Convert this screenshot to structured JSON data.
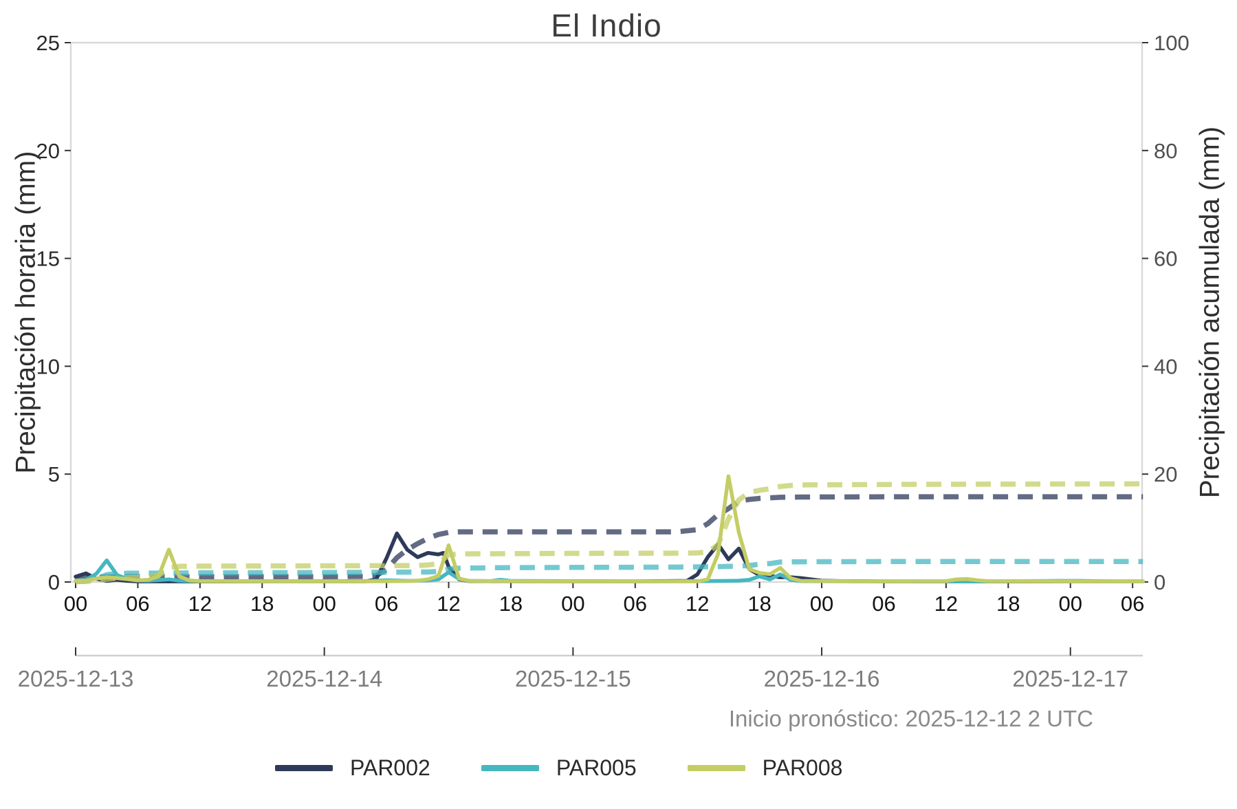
{
  "chart_data": {
    "type": "line",
    "title": "El Indio",
    "annotation": "Inicio pronóstico: 2025-12-12 2 UTC",
    "x_unit": "hours since 2025-12-13 00:00",
    "x_range_hours": [
      0,
      103
    ],
    "ylabel_left": "Precipitación horaria (mm)",
    "ylabel_right": "Precipitación acumulada (mm)",
    "ylim_left": [
      0,
      25
    ],
    "ylim_right": [
      0,
      100
    ],
    "grid": false,
    "x_axis": {
      "hour_tick_step": 6,
      "hour_tick_labels": [
        "00",
        "06",
        "12",
        "18",
        "00",
        "06",
        "12",
        "18",
        "00",
        "06",
        "12",
        "18",
        "00",
        "06",
        "12",
        "18",
        "00",
        "06"
      ],
      "date_ticks": [
        {
          "hour": 0,
          "label": "2025-12-13"
        },
        {
          "hour": 24,
          "label": "2025-12-14"
        },
        {
          "hour": 48,
          "label": "2025-12-15"
        },
        {
          "hour": 72,
          "label": "2025-12-16"
        },
        {
          "hour": 96,
          "label": "2025-12-17"
        }
      ]
    },
    "y_axis": {
      "left_tick_values": [
        0,
        5,
        10,
        15,
        20,
        25
      ],
      "right_tick_values": [
        0,
        20,
        40,
        60,
        80,
        100
      ]
    },
    "legend": {
      "position": "bottom",
      "entries": [
        {
          "label": "PAR002",
          "color": "#2e3a5a"
        },
        {
          "label": "PAR005",
          "color": "#45b7c1"
        },
        {
          "label": "PAR008",
          "color": "#c3cd65"
        }
      ]
    },
    "series": [
      {
        "name": "PAR002 horaria",
        "legend": "PAR002",
        "color": "#2e3a5a",
        "style": "solid",
        "axis": "left",
        "points": [
          [
            0,
            0.25
          ],
          [
            1,
            0.4
          ],
          [
            2,
            0.15
          ],
          [
            3,
            0.05
          ],
          [
            4,
            0.1
          ],
          [
            5,
            0.05
          ],
          [
            6,
            0.03
          ],
          [
            12,
            0.03
          ],
          [
            20,
            0.03
          ],
          [
            28,
            0.03
          ],
          [
            29,
            0.12
          ],
          [
            30,
            1.1
          ],
          [
            31,
            2.25
          ],
          [
            32,
            1.5
          ],
          [
            33,
            1.15
          ],
          [
            34,
            1.35
          ],
          [
            35,
            1.28
          ],
          [
            35.5,
            1.35
          ],
          [
            36,
            0.7
          ],
          [
            37,
            0.12
          ],
          [
            38,
            0.04
          ],
          [
            46,
            0.03
          ],
          [
            54,
            0.03
          ],
          [
            59,
            0.05
          ],
          [
            60,
            0.35
          ],
          [
            61,
            1.15
          ],
          [
            62,
            1.75
          ],
          [
            63,
            1.05
          ],
          [
            64,
            1.55
          ],
          [
            65,
            0.6
          ],
          [
            66,
            0.32
          ],
          [
            67,
            0.28
          ],
          [
            68,
            0.22
          ],
          [
            69,
            0.22
          ],
          [
            70,
            0.18
          ],
          [
            71,
            0.12
          ],
          [
            72,
            0.06
          ],
          [
            74,
            0.04
          ],
          [
            78,
            0.03
          ],
          [
            90,
            0.03
          ],
          [
            103,
            0.03
          ]
        ]
      },
      {
        "name": "PAR002 acumulada",
        "legend": "PAR002",
        "color": "#2e3a5a",
        "style": "dashed",
        "axis": "right",
        "points": [
          [
            0,
            0.3
          ],
          [
            1,
            0.75
          ],
          [
            2,
            0.9
          ],
          [
            3,
            0.95
          ],
          [
            4,
            1.0
          ],
          [
            12,
            1.0
          ],
          [
            24,
            1.0
          ],
          [
            28,
            1.05
          ],
          [
            29,
            1.2
          ],
          [
            30,
            2.3
          ],
          [
            31,
            4.5
          ],
          [
            32,
            6.0
          ],
          [
            33,
            7.1
          ],
          [
            34,
            8.1
          ],
          [
            35,
            8.8
          ],
          [
            36,
            9.2
          ],
          [
            37,
            9.3
          ],
          [
            48,
            9.3
          ],
          [
            58,
            9.3
          ],
          [
            60,
            9.7
          ],
          [
            61,
            10.8
          ],
          [
            62,
            12.5
          ],
          [
            63,
            13.6
          ],
          [
            64,
            15.0
          ],
          [
            65,
            15.3
          ],
          [
            66,
            15.5
          ],
          [
            67,
            15.6
          ],
          [
            68,
            15.7
          ],
          [
            70,
            15.75
          ],
          [
            80,
            15.8
          ],
          [
            103,
            15.8
          ]
        ]
      },
      {
        "name": "PAR005 horaria",
        "legend": "PAR005",
        "color": "#45b7c1",
        "style": "solid",
        "axis": "left",
        "points": [
          [
            0,
            0.06
          ],
          [
            1,
            0.1
          ],
          [
            2,
            0.38
          ],
          [
            3,
            1.0
          ],
          [
            4,
            0.32
          ],
          [
            5,
            0.14
          ],
          [
            6,
            0.07
          ],
          [
            7,
            0.06
          ],
          [
            8,
            0.09
          ],
          [
            9,
            0.12
          ],
          [
            10,
            0.06
          ],
          [
            12,
            0.04
          ],
          [
            20,
            0.03
          ],
          [
            28,
            0.04
          ],
          [
            30,
            0.08
          ],
          [
            32,
            0.05
          ],
          [
            34,
            0.07
          ],
          [
            35,
            0.12
          ],
          [
            36,
            0.45
          ],
          [
            37,
            0.14
          ],
          [
            38,
            0.05
          ],
          [
            40,
            0.04
          ],
          [
            41,
            0.1
          ],
          [
            42,
            0.05
          ],
          [
            48,
            0.04
          ],
          [
            56,
            0.03
          ],
          [
            60,
            0.04
          ],
          [
            63,
            0.05
          ],
          [
            64,
            0.06
          ],
          [
            65,
            0.1
          ],
          [
            66,
            0.26
          ],
          [
            67,
            0.12
          ],
          [
            68,
            0.35
          ],
          [
            69,
            0.1
          ],
          [
            70,
            0.04
          ],
          [
            76,
            0.03
          ],
          [
            88,
            0.03
          ],
          [
            95,
            0.05
          ],
          [
            97,
            0.05
          ],
          [
            100,
            0.03
          ],
          [
            103,
            0.03
          ]
        ]
      },
      {
        "name": "PAR005 acumulada",
        "legend": "PAR005",
        "color": "#45b7c1",
        "style": "dashed",
        "axis": "right",
        "points": [
          [
            0,
            0.06
          ],
          [
            1,
            0.18
          ],
          [
            2,
            0.55
          ],
          [
            3,
            1.35
          ],
          [
            4,
            1.55
          ],
          [
            5,
            1.62
          ],
          [
            12,
            1.68
          ],
          [
            24,
            1.75
          ],
          [
            34,
            1.85
          ],
          [
            35,
            1.95
          ],
          [
            36,
            2.4
          ],
          [
            37,
            2.55
          ],
          [
            41,
            2.65
          ],
          [
            48,
            2.7
          ],
          [
            58,
            2.75
          ],
          [
            62,
            2.85
          ],
          [
            64,
            2.95
          ],
          [
            65,
            3.05
          ],
          [
            66,
            3.3
          ],
          [
            67,
            3.4
          ],
          [
            68,
            3.7
          ],
          [
            70,
            3.75
          ],
          [
            80,
            3.8
          ],
          [
            103,
            3.8
          ]
        ]
      },
      {
        "name": "PAR008 horaria",
        "legend": "PAR008",
        "color": "#c3cd65",
        "style": "solid",
        "axis": "left",
        "points": [
          [
            0,
            0.05
          ],
          [
            1,
            0.06
          ],
          [
            2,
            0.16
          ],
          [
            3,
            0.22
          ],
          [
            4,
            0.18
          ],
          [
            5,
            0.13
          ],
          [
            6,
            0.07
          ],
          [
            7,
            0.1
          ],
          [
            8,
            0.26
          ],
          [
            9,
            1.5
          ],
          [
            10,
            0.26
          ],
          [
            11,
            0.07
          ],
          [
            12,
            0.04
          ],
          [
            20,
            0.03
          ],
          [
            28,
            0.03
          ],
          [
            32,
            0.04
          ],
          [
            33,
            0.06
          ],
          [
            34,
            0.12
          ],
          [
            35,
            0.28
          ],
          [
            36,
            1.7
          ],
          [
            37,
            0.16
          ],
          [
            38,
            0.05
          ],
          [
            44,
            0.03
          ],
          [
            52,
            0.03
          ],
          [
            60,
            0.03
          ],
          [
            61,
            0.12
          ],
          [
            62,
            1.3
          ],
          [
            63,
            4.9
          ],
          [
            64,
            2.3
          ],
          [
            65,
            0.6
          ],
          [
            66,
            0.42
          ],
          [
            67,
            0.36
          ],
          [
            68,
            0.65
          ],
          [
            69,
            0.18
          ],
          [
            70,
            0.05
          ],
          [
            76,
            0.03
          ],
          [
            84,
            0.04
          ],
          [
            85,
            0.12
          ],
          [
            86,
            0.14
          ],
          [
            87,
            0.08
          ],
          [
            88,
            0.04
          ],
          [
            96,
            0.03
          ],
          [
            103,
            0.03
          ]
        ]
      },
      {
        "name": "PAR008 acumulada",
        "legend": "PAR008",
        "color": "#c3cd65",
        "style": "dashed",
        "axis": "right",
        "points": [
          [
            0,
            0.05
          ],
          [
            1,
            0.12
          ],
          [
            2,
            0.28
          ],
          [
            3,
            0.5
          ],
          [
            4,
            0.68
          ],
          [
            5,
            0.8
          ],
          [
            6,
            0.87
          ],
          [
            7,
            0.97
          ],
          [
            8,
            1.2
          ],
          [
            9,
            2.65
          ],
          [
            10,
            2.9
          ],
          [
            12,
            2.95
          ],
          [
            24,
            3.0
          ],
          [
            33,
            3.05
          ],
          [
            34,
            3.15
          ],
          [
            35,
            3.4
          ],
          [
            36,
            5.05
          ],
          [
            37,
            5.2
          ],
          [
            48,
            5.3
          ],
          [
            58,
            5.35
          ],
          [
            60,
            5.4
          ],
          [
            61,
            5.55
          ],
          [
            62,
            6.9
          ],
          [
            63,
            11.7
          ],
          [
            64,
            15.2
          ],
          [
            65,
            16.6
          ],
          [
            66,
            17.0
          ],
          [
            67,
            17.3
          ],
          [
            68,
            17.7
          ],
          [
            69,
            17.9
          ],
          [
            70,
            18.0
          ],
          [
            80,
            18.1
          ],
          [
            103,
            18.2
          ]
        ]
      }
    ]
  }
}
